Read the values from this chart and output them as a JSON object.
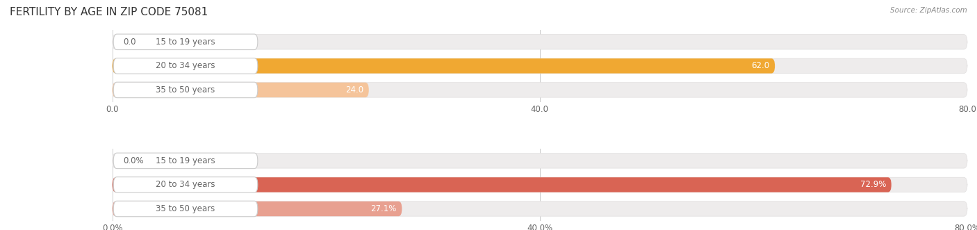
{
  "title": "FERTILITY BY AGE IN ZIP CODE 75081",
  "source_text": "Source: ZipAtlas.com",
  "top_group": {
    "categories": [
      "15 to 19 years",
      "20 to 34 years",
      "35 to 50 years"
    ],
    "values": [
      0.0,
      62.0,
      24.0
    ],
    "value_labels": [
      "0.0",
      "62.0",
      "24.0"
    ],
    "bar_colors": [
      "#f5c49a",
      "#f0a832",
      "#f5c49a"
    ],
    "bar_bg_color": "#eeecec",
    "xlim": [
      0,
      80
    ],
    "xticks": [
      0.0,
      40.0,
      80.0
    ],
    "xticklabels": [
      "0.0",
      "40.0",
      "80.0"
    ]
  },
  "bottom_group": {
    "categories": [
      "15 to 19 years",
      "20 to 34 years",
      "35 to 50 years"
    ],
    "values": [
      0.0,
      72.9,
      27.1
    ],
    "value_labels": [
      "0.0%",
      "72.9%",
      "27.1%"
    ],
    "bar_colors": [
      "#e8a090",
      "#d96454",
      "#e8a090"
    ],
    "bar_bg_color": "#eeecec",
    "xlim": [
      0,
      80
    ],
    "xticks": [
      0.0,
      40.0,
      80.0
    ],
    "xticklabels": [
      "0.0%",
      "40.0%",
      "80.0%"
    ]
  },
  "label_color": "#666666",
  "value_label_color_light": "#ffffff",
  "value_label_color_dark": "#666666",
  "background_color": "#ffffff",
  "pill_bg_color": "#ffffff",
  "pill_border_color": "#dddddd",
  "title_fontsize": 11,
  "tick_fontsize": 8.5,
  "cat_fontsize": 8.5,
  "val_fontsize": 8.5
}
